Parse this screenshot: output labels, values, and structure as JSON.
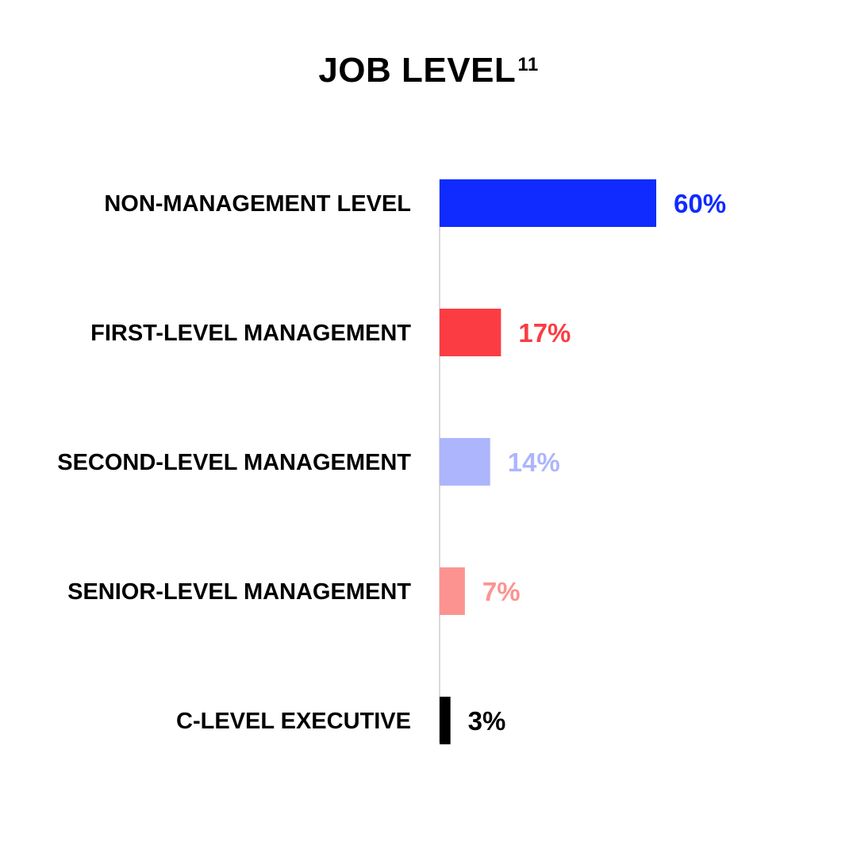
{
  "chart_data": {
    "type": "bar",
    "orientation": "horizontal",
    "title": "JOB LEVEL",
    "title_superscript": "11",
    "categories": [
      "NON-MANAGEMENT LEVEL",
      "FIRST-LEVEL MANAGEMENT",
      "SECOND-LEVEL MANAGEMENT",
      "SENIOR-LEVEL MANAGEMENT",
      "C-LEVEL EXECUTIVE"
    ],
    "values": [
      60,
      17,
      14,
      7,
      3
    ],
    "value_labels": [
      "60%",
      "17%",
      "14%",
      "7%",
      "3%"
    ],
    "colors": [
      "#0f2bff",
      "#fb3c43",
      "#adb5fd",
      "#fd9390",
      "#000000"
    ],
    "xlim": [
      0,
      100
    ],
    "grid": false,
    "legend": "none"
  }
}
